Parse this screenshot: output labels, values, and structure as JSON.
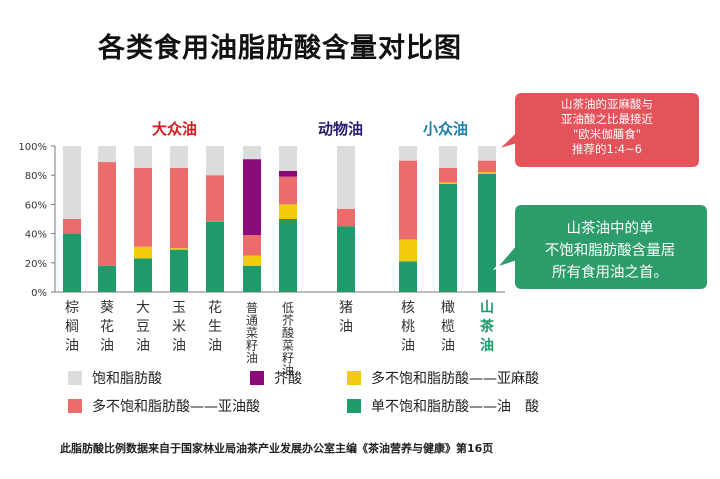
{
  "title": "各类食用油脂肪酸含量对比图",
  "groups": [
    {
      "label": "大众油",
      "color": "#d7191c"
    },
    {
      "label": "动物油",
      "color": "#2a1a6e"
    },
    {
      "label": "小众油",
      "color": "#1f7fa8"
    }
  ],
  "callouts": {
    "red": [
      "山茶油的亚麻酸与",
      "亚油酸之比最接近",
      "\"欧米伽膳食\"",
      "推荐的1:4~6"
    ],
    "green": [
      "山茶油中的单",
      "不饱和脂肪酸含量居",
      "所有食用油之首。"
    ]
  },
  "footnote": "此脂肪酸比例数据来自于国家林业局油茶产业发展办公室主编《茶油营养与健康》第16页",
  "colors": {
    "saturated": "#dcdcdc",
    "erucic": "#8b0a7a",
    "linolenic": "#f2cc0c",
    "linoleic": "#ec6b6b",
    "oleic": "#1f9a6b",
    "highlight": "#1f9a6b"
  },
  "chart_data": {
    "type": "bar",
    "stacked": true,
    "ylim": [
      0,
      100
    ],
    "yticks": [
      "0%",
      "20%",
      "40%",
      "60%",
      "80%",
      "100%"
    ],
    "categories": [
      "棕榈油",
      "葵花油",
      "大豆油",
      "玉米油",
      "花生油",
      "普通菜籽油",
      "低芥酸菜籽油",
      "猪油",
      "核桃油",
      "橄榄油",
      "山茶油"
    ],
    "highlight_category": "山茶油",
    "series": [
      {
        "name": "单不饱和脂肪酸——油　酸",
        "key": "oleic",
        "values": [
          40,
          18,
          23,
          29,
          48,
          18,
          50,
          45,
          21,
          74,
          81
        ]
      },
      {
        "name": "多不饱和脂肪酸——亚麻酸",
        "key": "linolenic",
        "values": [
          0,
          0,
          8,
          1,
          0,
          7,
          10,
          0,
          15,
          1,
          1
        ]
      },
      {
        "name": "多不饱和脂肪酸——亚油酸",
        "key": "linoleic",
        "values": [
          10,
          71,
          54,
          55,
          32,
          14,
          19,
          12,
          54,
          10,
          8
        ]
      },
      {
        "name": "芥酸",
        "key": "erucic",
        "values": [
          0,
          0,
          0,
          0,
          0,
          52,
          4,
          0,
          0,
          0,
          0
        ]
      },
      {
        "name": "饱和脂肪酸",
        "key": "saturated",
        "values": [
          50,
          11,
          15,
          15,
          20,
          9,
          17,
          43,
          10,
          15,
          10
        ]
      }
    ],
    "legend": [
      {
        "label": "饱和脂肪酸",
        "key": "saturated"
      },
      {
        "label": "芥酸",
        "key": "erucic"
      },
      {
        "label": "多不饱和脂肪酸——亚麻酸",
        "key": "linolenic"
      },
      {
        "label": "多不饱和脂肪酸——亚油酸",
        "key": "linoleic"
      },
      {
        "label": "单不饱和脂肪酸——油　酸",
        "key": "oleic"
      }
    ]
  }
}
